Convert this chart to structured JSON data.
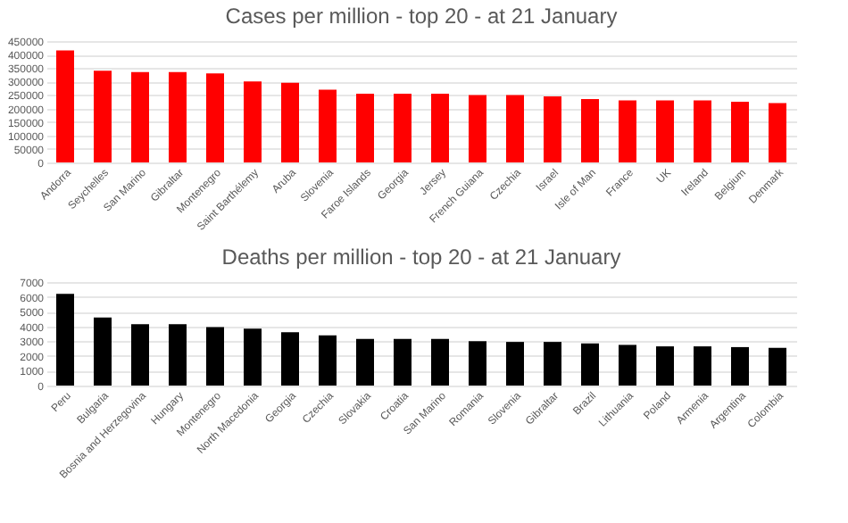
{
  "chart_data": [
    {
      "type": "bar",
      "title": "Cases per million - top 20 - at 21 January",
      "categories": [
        "Andorra",
        "Seychelles",
        "San Marino",
        "Gibraltar",
        "Montenegro",
        "Saint Barthélemy",
        "Aruba",
        "Slovenia",
        "Faroe Islands",
        "Georgia",
        "Jersey",
        "French Guiana",
        "Czechia",
        "Israel",
        "Isle of Man",
        "France",
        "UK",
        "Ireland",
        "Belgium",
        "Denmark"
      ],
      "values": [
        415000,
        340000,
        335000,
        335000,
        330000,
        300000,
        295000,
        270000,
        255000,
        255000,
        255000,
        250000,
        250000,
        245000,
        235000,
        230000,
        230000,
        230000,
        225000,
        220000
      ],
      "color": "#ff0000",
      "ylim": [
        0,
        450000
      ],
      "yticks": [
        0,
        50000,
        100000,
        150000,
        200000,
        250000,
        300000,
        350000,
        400000,
        450000
      ],
      "grid": "y"
    },
    {
      "type": "bar",
      "title": "Deaths per million - top 20 - at 21 January",
      "categories": [
        "Peru",
        "Bulgaria",
        "Bosnia and Herzegovina",
        "Hungary",
        "Montenegro",
        "North Macedonia",
        "Georgia",
        "Czechia",
        "Slovakia",
        "Croatia",
        "San Marino",
        "Romania",
        "Slovenia",
        "Gibraltar",
        "Brazil",
        "Lithuania",
        "Poland",
        "Armenia",
        "Argentina",
        "Colombia"
      ],
      "values": [
        6200,
        4600,
        4150,
        4150,
        3950,
        3850,
        3600,
        3400,
        3150,
        3150,
        3150,
        3000,
        2950,
        2950,
        2850,
        2750,
        2650,
        2650,
        2600,
        2550
      ],
      "color": "#000000",
      "ylim": [
        0,
        7000
      ],
      "yticks": [
        0,
        1000,
        2000,
        3000,
        4000,
        5000,
        6000,
        7000
      ],
      "grid": "y"
    }
  ]
}
